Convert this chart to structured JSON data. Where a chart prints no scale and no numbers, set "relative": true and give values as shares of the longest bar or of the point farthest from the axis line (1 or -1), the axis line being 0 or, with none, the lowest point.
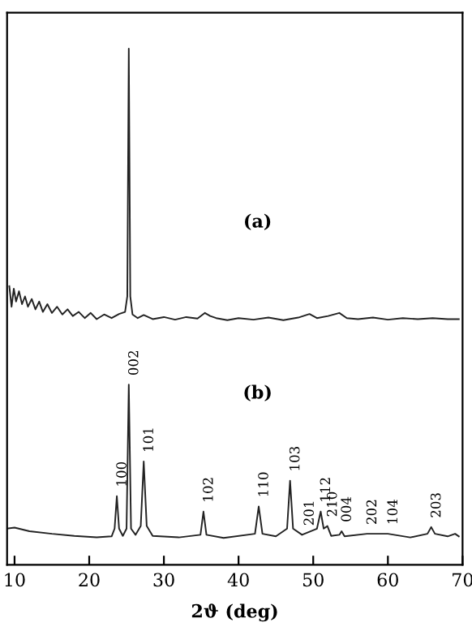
{
  "chart_data": {
    "type": "line",
    "relative": true,
    "xlabel": "2ϑ (deg)",
    "xlim": [
      9,
      70
    ],
    "xticks": [
      10,
      20,
      30,
      40,
      50,
      60,
      70
    ],
    "tick_labels": "x",
    "grid": false,
    "legend": false,
    "marker": "none",
    "line_style": "solid",
    "series": [
      {
        "color": "#222222",
        "x": [
          9.3,
          9.6,
          9.9,
          10.2,
          10.6,
          11.0,
          11.4,
          11.8,
          12.3,
          12.8,
          13.3,
          13.8,
          14.4,
          15,
          15.7,
          16.4,
          17.1,
          17.8,
          18.6,
          19.4,
          20.2,
          21,
          22,
          23,
          24,
          24.8,
          25.1,
          25.3,
          25.5,
          25.8,
          26.5,
          27.3,
          28.5,
          30,
          31.5,
          33,
          34.5,
          35.5,
          36.2,
          37,
          38.5,
          40,
          42,
          44,
          46,
          48,
          49.5,
          50.5,
          52,
          53.5,
          54.5,
          56,
          58,
          60,
          62,
          64,
          66,
          68,
          69.5
        ],
        "values": [
          0.54,
          0.5,
          0.535,
          0.51,
          0.53,
          0.505,
          0.52,
          0.5,
          0.515,
          0.495,
          0.51,
          0.49,
          0.505,
          0.488,
          0.5,
          0.485,
          0.495,
          0.482,
          0.49,
          0.478,
          0.488,
          0.476,
          0.485,
          0.478,
          0.486,
          0.49,
          0.52,
          1.0,
          0.52,
          0.485,
          0.478,
          0.484,
          0.476,
          0.48,
          0.475,
          0.48,
          0.477,
          0.488,
          0.482,
          0.478,
          0.474,
          0.478,
          0.475,
          0.479,
          0.474,
          0.479,
          0.486,
          0.478,
          0.482,
          0.488,
          0.478,
          0.476,
          0.479,
          0.475,
          0.478,
          0.476,
          0.478,
          0.476,
          0.476
        ]
      },
      {
        "color": "#222222",
        "x": [
          9.0,
          10,
          12,
          15,
          18,
          21,
          23,
          23.4,
          23.7,
          24.0,
          24.5,
          25.0,
          25.3,
          25.6,
          26.2,
          26.9,
          27.3,
          27.7,
          28.5,
          32,
          34.9,
          35.3,
          35.7,
          38,
          42.2,
          42.7,
          43.2,
          45,
          46.5,
          46.9,
          47.3,
          48.5,
          50.5,
          51.0,
          51.4,
          51.9,
          52.4,
          53.5,
          53.8,
          54.2,
          57.2,
          60,
          63,
          65.3,
          65.8,
          66.3,
          68,
          69,
          69.5
        ],
        "values": [
          0.07,
          0.072,
          0.065,
          0.06,
          0.056,
          0.053,
          0.055,
          0.07,
          0.133,
          0.07,
          0.056,
          0.07,
          0.349,
          0.07,
          0.058,
          0.075,
          0.2,
          0.075,
          0.056,
          0.053,
          0.058,
          0.103,
          0.058,
          0.052,
          0.06,
          0.113,
          0.06,
          0.055,
          0.07,
          0.163,
          0.07,
          0.058,
          0.07,
          0.103,
          0.07,
          0.075,
          0.056,
          0.058,
          0.065,
          0.055,
          0.06,
          0.06,
          0.053,
          0.06,
          0.073,
          0.06,
          0.055,
          0.06,
          0.055
        ]
      }
    ],
    "annotations": [
      "(a)",
      "(b)",
      {
        "text": "100",
        "x": 23.7,
        "y": 0.133
      },
      {
        "text": "002",
        "x": 25.3,
        "y": 0.349
      },
      {
        "text": "101",
        "x": 27.3,
        "y": 0.2
      },
      {
        "text": "102",
        "x": 35.3,
        "y": 0.103
      },
      {
        "text": "110",
        "x": 42.7,
        "y": 0.113
      },
      {
        "text": "103",
        "x": 46.9,
        "y": 0.163
      },
      {
        "text": "201",
        "x": 48.8,
        "y": 0.058
      },
      {
        "text": "112",
        "x": 51.0,
        "y": 0.103
      },
      {
        "text": "210",
        "x": 51.9,
        "y": 0.075
      },
      {
        "text": "004",
        "x": 53.8,
        "y": 0.065
      },
      {
        "text": "202",
        "x": 57.2,
        "y": 0.06
      },
      {
        "text": "104",
        "x": 60,
        "y": 0.06
      },
      {
        "text": "203",
        "x": 65.8,
        "y": 0.073
      }
    ]
  }
}
